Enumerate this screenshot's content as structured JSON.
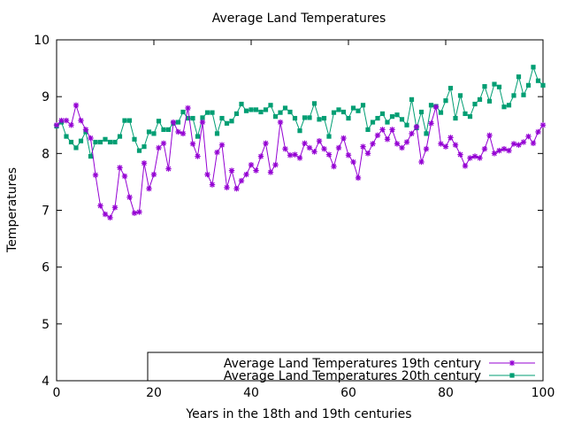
{
  "chart_data": {
    "type": "line",
    "title": "Average Land Temperatures",
    "xlabel": "Years in the 18th and 19th centuries",
    "ylabel": "Temperatures",
    "xlim": [
      0,
      100
    ],
    "ylim": [
      4,
      10
    ],
    "xticks": [
      0,
      20,
      40,
      60,
      80,
      100
    ],
    "yticks": [
      4,
      5,
      6,
      7,
      8,
      9,
      10
    ],
    "grid": false,
    "legend_position": "bottom-right",
    "series": [
      {
        "name": "Average Land Temperatures 19th century",
        "color": "#9400d3",
        "marker": "asterisk",
        "x": [
          0,
          1,
          2,
          3,
          4,
          5,
          6,
          7,
          8,
          9,
          10,
          11,
          12,
          13,
          14,
          15,
          16,
          17,
          18,
          19,
          20,
          21,
          22,
          23,
          24,
          25,
          26,
          27,
          28,
          29,
          30,
          31,
          32,
          33,
          34,
          35,
          36,
          37,
          38,
          39,
          40,
          41,
          42,
          43,
          44,
          45,
          46,
          47,
          48,
          49,
          50,
          51,
          52,
          53,
          54,
          55,
          56,
          57,
          58,
          59,
          60,
          61,
          62,
          63,
          64,
          65,
          66,
          67,
          68,
          69,
          70,
          71,
          72,
          73,
          74,
          75,
          76,
          77,
          78,
          79,
          80,
          81,
          82,
          83,
          84,
          85,
          86,
          87,
          88,
          89,
          90,
          91,
          92,
          93,
          94,
          95,
          96,
          97,
          98,
          99,
          100
        ],
        "y": [
          8.5,
          8.58,
          8.58,
          8.5,
          8.85,
          8.58,
          8.42,
          8.27,
          7.62,
          7.08,
          6.93,
          6.87,
          7.05,
          7.75,
          7.6,
          7.23,
          6.95,
          6.97,
          7.83,
          7.38,
          7.63,
          8.1,
          8.18,
          7.73,
          8.55,
          8.38,
          8.35,
          8.8,
          8.17,
          7.95,
          8.55,
          7.63,
          7.45,
          8.02,
          8.15,
          7.4,
          7.7,
          7.38,
          7.52,
          7.63,
          7.8,
          7.7,
          7.95,
          8.18,
          7.67,
          7.8,
          8.55,
          8.08,
          7.97,
          7.98,
          7.92,
          8.18,
          8.1,
          8.03,
          8.22,
          8.08,
          7.98,
          7.77,
          8.1,
          8.27,
          7.97,
          7.85,
          7.57,
          8.12,
          8.0,
          8.17,
          8.32,
          8.42,
          8.25,
          8.42,
          8.17,
          8.1,
          8.2,
          8.35,
          8.47,
          7.85,
          8.08,
          8.53,
          8.82,
          8.17,
          8.12,
          8.28,
          8.15,
          7.98,
          7.78,
          7.92,
          7.95,
          7.92,
          8.08,
          8.32,
          8.0,
          8.05,
          8.08,
          8.05,
          8.17,
          8.15,
          8.2,
          8.3,
          8.18,
          8.38,
          8.5
        ]
      },
      {
        "name": "Average Land Temperatures 20th century",
        "color": "#009e73",
        "marker": "filled-square",
        "x": [
          0,
          1,
          2,
          3,
          4,
          5,
          6,
          7,
          8,
          9,
          10,
          11,
          12,
          13,
          14,
          15,
          16,
          17,
          18,
          19,
          20,
          21,
          22,
          23,
          24,
          25,
          26,
          27,
          28,
          29,
          30,
          31,
          32,
          33,
          34,
          35,
          36,
          37,
          38,
          39,
          40,
          41,
          42,
          43,
          44,
          45,
          46,
          47,
          48,
          49,
          50,
          51,
          52,
          53,
          54,
          55,
          56,
          57,
          58,
          59,
          60,
          61,
          62,
          63,
          64,
          65,
          66,
          67,
          68,
          69,
          70,
          71,
          72,
          73,
          74,
          75,
          76,
          77,
          78,
          79,
          80,
          81,
          82,
          83,
          84,
          85,
          86,
          87,
          88,
          89,
          90,
          91,
          92,
          93,
          94,
          95,
          96,
          97,
          98,
          99,
          100
        ],
        "y": [
          8.48,
          8.55,
          8.3,
          8.2,
          8.1,
          8.22,
          8.38,
          7.95,
          8.2,
          8.2,
          8.25,
          8.2,
          8.2,
          8.3,
          8.58,
          8.58,
          8.25,
          8.05,
          8.12,
          8.38,
          8.35,
          8.57,
          8.42,
          8.42,
          8.53,
          8.55,
          8.73,
          8.62,
          8.62,
          8.3,
          8.63,
          8.72,
          8.72,
          8.35,
          8.62,
          8.53,
          8.57,
          8.7,
          8.87,
          8.75,
          8.77,
          8.77,
          8.73,
          8.77,
          8.85,
          8.65,
          8.72,
          8.8,
          8.73,
          8.62,
          8.4,
          8.63,
          8.63,
          8.88,
          8.6,
          8.62,
          8.3,
          8.72,
          8.77,
          8.73,
          8.62,
          8.8,
          8.75,
          8.85,
          8.42,
          8.55,
          8.62,
          8.7,
          8.55,
          8.65,
          8.68,
          8.6,
          8.5,
          8.95,
          8.45,
          8.73,
          8.35,
          8.85,
          8.83,
          8.72,
          8.93,
          9.15,
          8.62,
          9.02,
          8.7,
          8.65,
          8.87,
          8.95,
          9.18,
          8.92,
          9.22,
          9.17,
          8.82,
          8.85,
          9.02,
          9.35,
          9.03,
          9.2,
          9.52,
          9.28,
          9.2
        ]
      }
    ]
  }
}
